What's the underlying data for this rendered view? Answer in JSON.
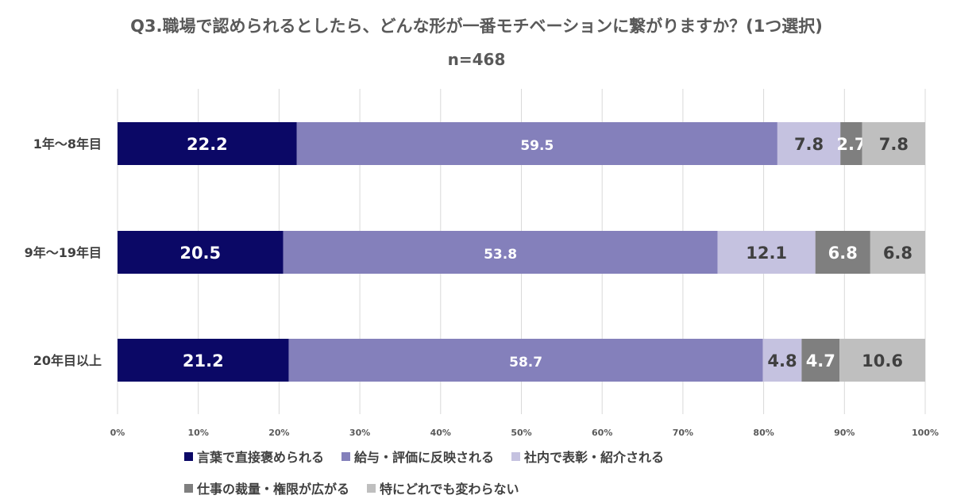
{
  "chart_data": {
    "type": "bar",
    "orientation": "horizontal",
    "stacked": true,
    "title": "Q3.職場で認められるとしたら、どんな形が一番モチベーションに繋がりますか？(1つ選択)",
    "subtitle": "n=468",
    "categories": [
      "1年〜8年目",
      "9年〜19年目",
      "20年目以上"
    ],
    "series": [
      {
        "name": "言葉で直接褒められる",
        "color": "#0b0866",
        "label_color": "#ffffff",
        "values": [
          22.2,
          20.5,
          21.2
        ]
      },
      {
        "name": "給与・評価に反映される",
        "color": "#8480bb",
        "label_color": "#ffffff",
        "values": [
          59.5,
          53.8,
          58.7
        ]
      },
      {
        "name": "社内で表彰・紹介される",
        "color": "#c5c2e0",
        "label_color": "#404040",
        "values": [
          7.8,
          12.1,
          4.8
        ]
      },
      {
        "name": "仕事の裁量・権限が広がる",
        "color": "#7f7f7f",
        "label_color": "#ffffff",
        "values": [
          2.7,
          6.8,
          4.7
        ]
      },
      {
        "name": "特にどれでも変わらない",
        "color": "#bfbfbf",
        "label_color": "#404040",
        "values": [
          7.8,
          6.8,
          10.6
        ]
      }
    ],
    "xlim": [
      0,
      100
    ],
    "xticks": [
      "0%",
      "10%",
      "20%",
      "30%",
      "40%",
      "50%",
      "60%",
      "70%",
      "80%",
      "90%",
      "100%"
    ],
    "grid": true,
    "legend_position": "bottom"
  }
}
